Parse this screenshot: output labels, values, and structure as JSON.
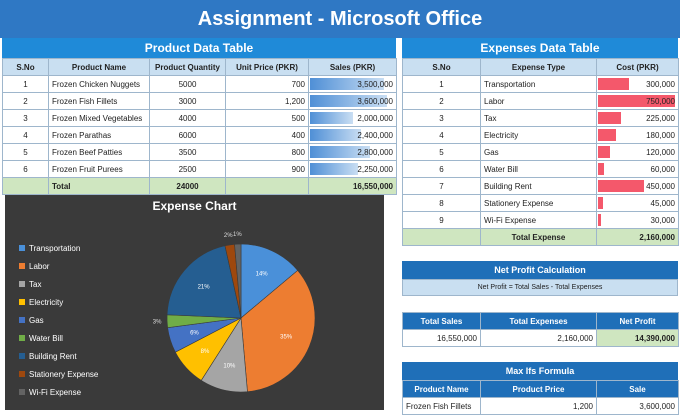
{
  "title": "Assignment - Microsoft Office",
  "product": {
    "title": "Product Data Table",
    "headers": [
      "S.No",
      "Product Name",
      "Product Quantity",
      "Unit Price (PKR)",
      "Sales (PKR)"
    ],
    "rows": [
      {
        "sno": "1",
        "name": "Frozen Chicken Nuggets",
        "qty": "5000",
        "price": "700",
        "sales": "3,500,000",
        "sales_value": 3500000
      },
      {
        "sno": "2",
        "name": "Frozen Fish Fillets",
        "qty": "3000",
        "price": "1,200",
        "sales": "3,600,000",
        "sales_value": 3600000
      },
      {
        "sno": "3",
        "name": "Frozen Mixed Vegetables",
        "qty": "4000",
        "price": "500",
        "sales": "2,000,000",
        "sales_value": 2000000
      },
      {
        "sno": "4",
        "name": "Frozen Parathas",
        "qty": "6000",
        "price": "400",
        "sales": "2,400,000",
        "sales_value": 2400000
      },
      {
        "sno": "5",
        "name": "Frozen Beef Patties",
        "qty": "3500",
        "price": "800",
        "sales": "2,800,000",
        "sales_value": 2800000
      },
      {
        "sno": "6",
        "name": "Frozen Fruit Purees",
        "qty": "2500",
        "price": "900",
        "sales": "2,250,000",
        "sales_value": 2250000
      }
    ],
    "total_label": "Total",
    "total_qty": "24000",
    "total_sales": "16,550,000"
  },
  "expenses": {
    "title": "Expenses Data Table",
    "headers": [
      "S.No",
      "Expense Type",
      "Cost (PKR)"
    ],
    "rows": [
      {
        "sno": "1",
        "type": "Transportation",
        "cost": "300,000",
        "value": 300000
      },
      {
        "sno": "2",
        "type": "Labor",
        "cost": "750,000",
        "value": 750000
      },
      {
        "sno": "3",
        "type": "Tax",
        "cost": "225,000",
        "value": 225000
      },
      {
        "sno": "4",
        "type": "Electricity",
        "cost": "180,000",
        "value": 180000
      },
      {
        "sno": "5",
        "type": "Gas",
        "cost": "120,000",
        "value": 120000
      },
      {
        "sno": "6",
        "type": "Water Bill",
        "cost": "60,000",
        "value": 60000
      },
      {
        "sno": "7",
        "type": "Building Rent",
        "cost": "450,000",
        "value": 450000
      },
      {
        "sno": "8",
        "type": "Stationery Expense",
        "cost": "45,000",
        "value": 45000
      },
      {
        "sno": "9",
        "type": "Wi-Fi Expense",
        "cost": "30,000",
        "value": 30000
      }
    ],
    "total_label": "Total Expense",
    "total": "2,160,000"
  },
  "net_profit": {
    "title": "Net Profit Calculation",
    "formula": "Net Profit = Total Sales - Total Expenses",
    "headers": [
      "Total Sales",
      "Total Expenses",
      "Net Profit"
    ],
    "values": [
      "16,550,000",
      "2,160,000",
      "14,390,000"
    ]
  },
  "maxifs": {
    "title": "Max Ifs Formula",
    "headers": [
      "Product Name",
      "Product Price",
      "Sale"
    ],
    "values": [
      "Frozen Fish Fillets",
      "1,200",
      "3,600,000"
    ]
  },
  "chart_data": {
    "type": "pie",
    "title": "Expense Chart",
    "categories": [
      "Transportation",
      "Labor",
      "Tax",
      "Electricity",
      "Gas",
      "Water Bill",
      "Building Rent",
      "Stationery Expense",
      "Wi-Fi Expense"
    ],
    "values": [
      300000,
      750000,
      225000,
      180000,
      120000,
      60000,
      450000,
      45000,
      30000
    ],
    "labels": [
      "14%",
      "35%",
      "10%",
      "8%",
      "6%",
      "3%",
      "21%",
      "2%",
      "1%"
    ],
    "colors": [
      "#4a90d9",
      "#ed7d31",
      "#a5a5a5",
      "#ffc000",
      "#4472c4",
      "#70ad47",
      "#255e91",
      "#9e480e",
      "#636363"
    ],
    "legend_position": "left"
  }
}
